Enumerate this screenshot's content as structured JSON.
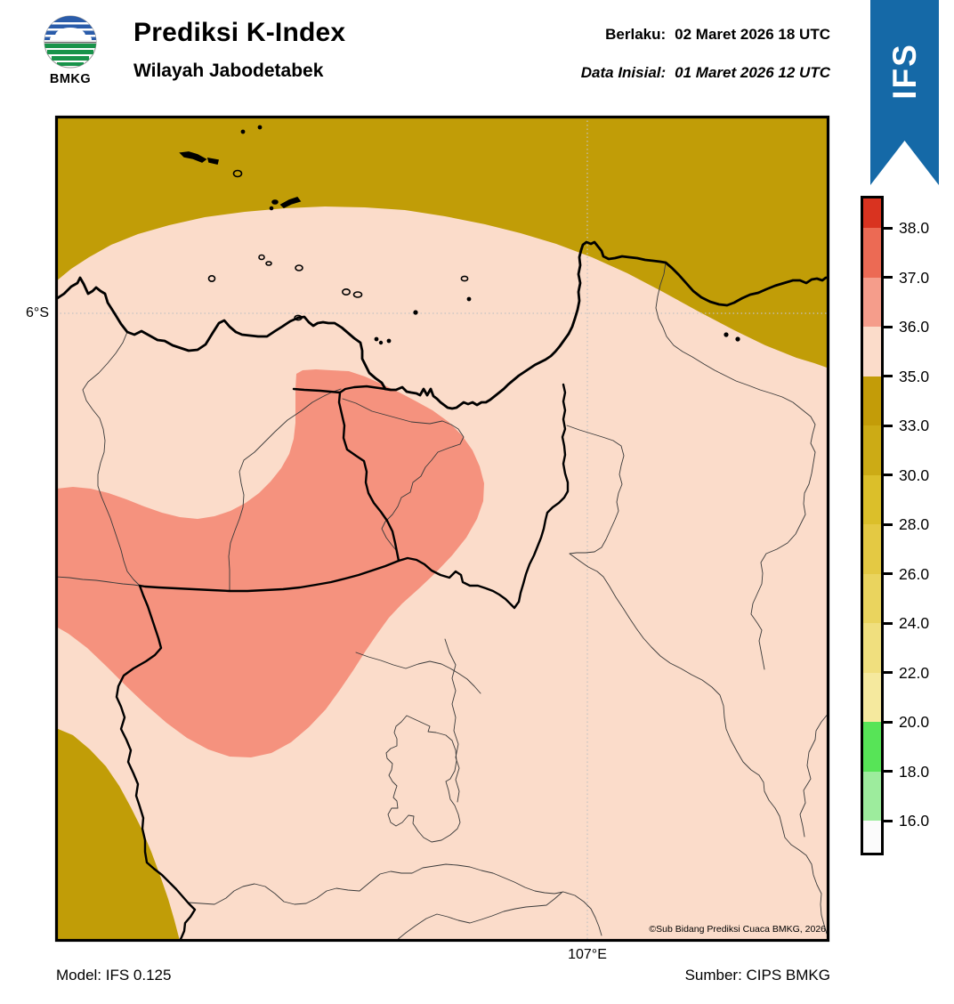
{
  "header": {
    "logo_text": "BMKG",
    "title": "Prediksi K-Index",
    "subtitle": "Wilayah Jabodetabek",
    "valid_label": "Berlaku:",
    "valid_value": "02 Maret 2026 18 UTC",
    "initial_label": "Data Inisial:",
    "initial_value": "01 Maret 2026 12 UTC"
  },
  "ribbon": {
    "label": "IFS",
    "color": "#1569a7"
  },
  "map": {
    "lat_label": "6°S",
    "lon_label": "107°E",
    "copyright": "©Sub Bidang Prediksi Cuaca BMKG, 2026",
    "colors": {
      "land_35_36": "#fbdcca",
      "sea_33_35": "#c19d07",
      "blob_36_37": "#f5927e",
      "coastline": "#000000",
      "admin_thick": "#000000",
      "admin_thin": "#3a3a3a",
      "gridline": "#c2c2c2",
      "border": "#000000"
    }
  },
  "colorbar": {
    "ticks": [
      "38.0",
      "37.0",
      "36.0",
      "35.0",
      "33.0",
      "30.0",
      "28.0",
      "26.0",
      "24.0",
      "22.0",
      "20.0",
      "18.0",
      "16.0"
    ],
    "segment_colors": [
      "#d93320",
      "#ec6a54",
      "#f59d8b",
      "#fbdcca",
      "#c39c08",
      "#ccab15",
      "#dbbf2a",
      "#e4c943",
      "#ead45e",
      "#f0df7e",
      "#f5e99e",
      "#57e457",
      "#9dec9d",
      "#fbfbfb"
    ]
  },
  "footer": {
    "model": "Model: IFS 0.125",
    "source": "Sumber: CIPS BMKG"
  }
}
